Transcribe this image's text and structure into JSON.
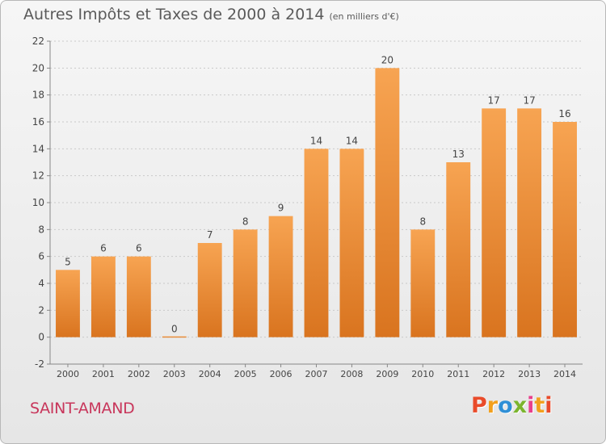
{
  "chart_data": {
    "type": "bar",
    "title": "Autres Impôts et Taxes de 2000 à 2014",
    "subtitle": "(en milliers d'€)",
    "categories": [
      "2000",
      "2001",
      "2002",
      "2003",
      "2004",
      "2005",
      "2006",
      "2007",
      "2008",
      "2009",
      "2010",
      "2011",
      "2012",
      "2013",
      "2014"
    ],
    "values": [
      5,
      6,
      6,
      0,
      7,
      8,
      9,
      14,
      14,
      20,
      8,
      13,
      17,
      17,
      16
    ],
    "ylim": [
      -2,
      22
    ],
    "yticks": [
      -2,
      0,
      2,
      4,
      6,
      8,
      10,
      12,
      14,
      16,
      18,
      20,
      22
    ],
    "grid": true,
    "bar_color_top": "#f7a452",
    "bar_color_bottom": "#d9741f"
  },
  "footer": {
    "commune": "SAINT-AMAND",
    "brand_letters": [
      "P",
      "r",
      "o",
      "x",
      "i",
      "t",
      "i"
    ]
  }
}
